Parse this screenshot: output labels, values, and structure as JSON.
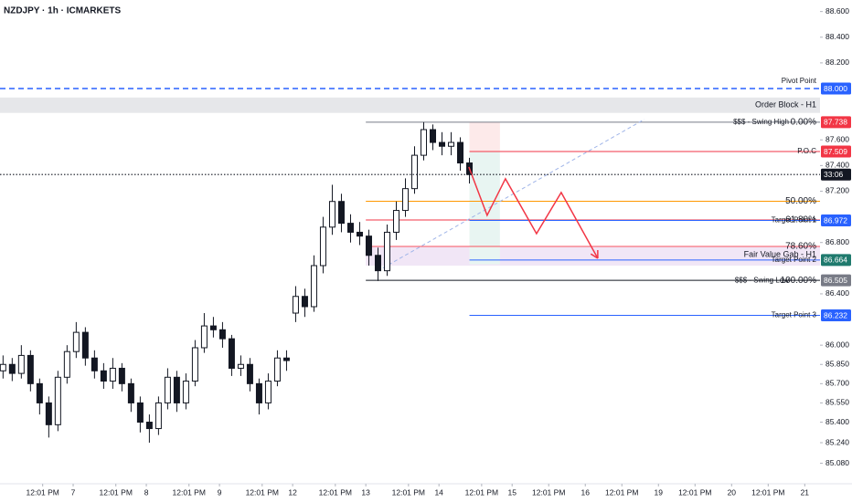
{
  "chart_data": {
    "type": "candlestick",
    "title": "NZDJPY · 1h · ICMARKETS",
    "x": [
      1,
      4,
      7,
      10,
      13,
      16,
      19,
      22,
      25,
      28,
      31,
      34,
      37,
      40,
      43,
      46,
      49,
      52,
      55,
      58,
      61,
      64,
      67,
      70,
      73,
      76,
      79,
      82,
      85,
      88,
      91,
      94,
      97,
      100,
      103,
      106,
      109,
      112,
      115,
      118,
      121,
      124,
      127,
      130,
      133,
      136,
      139,
      142,
      145,
      148,
      151,
      154
    ],
    "open": [
      85.8,
      85.85,
      85.78,
      85.92,
      85.7,
      85.55,
      85.38,
      85.75,
      85.95,
      86.1,
      85.9,
      85.8,
      85.72,
      85.82,
      85.7,
      85.55,
      85.4,
      85.35,
      85.55,
      85.75,
      85.55,
      85.72,
      85.98,
      86.15,
      86.12,
      86.05,
      85.82,
      85.85,
      85.7,
      85.55,
      85.72,
      85.9,
      86.25,
      86.38,
      86.3,
      86.62,
      86.92,
      87.12,
      86.95,
      86.88,
      86.85,
      86.7,
      86.58,
      86.88,
      87.05,
      87.22,
      87.48,
      87.68,
      87.58,
      87.55,
      87.58,
      87.42
    ],
    "high": [
      85.92,
      85.9,
      86.0,
      85.96,
      85.74,
      85.6,
      85.8,
      86.0,
      86.18,
      86.14,
      85.96,
      85.86,
      85.9,
      85.86,
      85.74,
      85.6,
      85.46,
      85.6,
      85.82,
      85.8,
      85.78,
      86.04,
      86.25,
      86.22,
      86.18,
      86.08,
      85.92,
      85.9,
      85.74,
      85.78,
      85.96,
      85.96,
      86.46,
      86.44,
      86.7,
      87.0,
      87.25,
      87.18,
      87.02,
      86.96,
      86.9,
      86.76,
      86.94,
      87.12,
      87.3,
      87.55,
      87.738,
      87.72,
      87.66,
      87.66,
      87.62,
      87.46
    ],
    "low": [
      85.74,
      85.72,
      85.74,
      85.64,
      85.46,
      85.28,
      85.33,
      85.7,
      85.9,
      85.84,
      85.74,
      85.66,
      85.66,
      85.64,
      85.48,
      85.32,
      85.24,
      85.3,
      85.5,
      85.48,
      85.5,
      85.68,
      85.94,
      86.06,
      85.98,
      85.76,
      85.76,
      85.64,
      85.46,
      85.5,
      85.68,
      85.8,
      86.18,
      86.22,
      86.26,
      86.56,
      86.86,
      86.88,
      86.8,
      86.78,
      86.62,
      86.5,
      86.54,
      86.82,
      87.0,
      87.18,
      87.44,
      87.52,
      87.48,
      87.48,
      87.36,
      87.26
    ],
    "close": [
      85.85,
      85.78,
      85.92,
      85.7,
      85.55,
      85.38,
      85.75,
      85.95,
      86.1,
      85.9,
      85.8,
      85.72,
      85.82,
      85.7,
      85.55,
      85.4,
      85.35,
      85.55,
      85.75,
      85.55,
      85.72,
      85.98,
      86.15,
      86.12,
      86.05,
      85.82,
      85.85,
      85.7,
      85.55,
      85.72,
      85.9,
      85.88,
      86.38,
      86.3,
      86.62,
      86.92,
      87.12,
      86.95,
      86.88,
      86.85,
      86.7,
      86.58,
      86.88,
      87.05,
      87.22,
      87.48,
      87.68,
      87.58,
      87.55,
      87.58,
      87.42,
      87.33
    ],
    "up_color": "#ffffff",
    "down_color": "#131722",
    "countdown": "33:06",
    "xlim": [
      0,
      269
    ],
    "ylim": [
      84.92,
      88.69
    ],
    "grid": false,
    "xticks": [
      {
        "value": 14,
        "label": "12:01 PM"
      },
      {
        "value": 24,
        "label": "7"
      },
      {
        "value": 38,
        "label": "12:01 PM"
      },
      {
        "value": 48,
        "label": "8"
      },
      {
        "value": 62,
        "label": "12:01 PM"
      },
      {
        "value": 72,
        "label": "9"
      },
      {
        "value": 86,
        "label": "12:01 PM"
      },
      {
        "value": 96,
        "label": "12"
      },
      {
        "value": 110,
        "label": "12:01 PM"
      },
      {
        "value": 120,
        "label": "13"
      },
      {
        "value": 134,
        "label": "12:01 PM"
      },
      {
        "value": 144,
        "label": "14"
      },
      {
        "value": 158,
        "label": "12:01 PM"
      },
      {
        "value": 168,
        "label": "15"
      },
      {
        "value": 180,
        "label": "12:01 PM"
      },
      {
        "value": 192,
        "label": "16"
      },
      {
        "value": 204,
        "label": "12:01 PM"
      },
      {
        "value": 216,
        "label": "19"
      },
      {
        "value": 228,
        "label": "12:01 PM"
      },
      {
        "value": 240,
        "label": "20"
      },
      {
        "value": 252,
        "label": "12:01 PM"
      },
      {
        "value": 264,
        "label": "21"
      }
    ],
    "yticks": [
      {
        "value": 88.6,
        "label": "88.600"
      },
      {
        "value": 88.4,
        "label": "88.400"
      },
      {
        "value": 88.2,
        "label": "88.200"
      },
      {
        "value": 87.6,
        "label": "87.600"
      },
      {
        "value": 87.4,
        "label": "87.400"
      },
      {
        "value": 87.2,
        "label": "87.200"
      },
      {
        "value": 86.8,
        "label": "86.800"
      },
      {
        "value": 86.4,
        "label": "86.400"
      },
      {
        "value": 86.0,
        "label": "86.000"
      },
      {
        "value": 85.85,
        "label": "85.850"
      },
      {
        "value": 85.7,
        "label": "85.700"
      },
      {
        "value": 85.55,
        "label": "85.550"
      },
      {
        "value": 85.4,
        "label": "85.400"
      },
      {
        "value": 85.24,
        "label": "85.240"
      },
      {
        "value": 85.08,
        "label": "85.080"
      }
    ],
    "order_block": {
      "label": "Order Block - H1",
      "top": 87.93,
      "bottom": 87.81,
      "color": "#e6e7ea"
    },
    "fair_value_gap": {
      "label": "Fair Value Gab - H1",
      "top": 86.77,
      "bottom": 86.62,
      "from": 120,
      "color": "#f1e6f6"
    },
    "position": {
      "from": 154,
      "to": 164,
      "stop": 87.738,
      "entry": 87.509,
      "target": 86.63,
      "stop_color": "#fdeaea",
      "target_color": "#e8f5f2"
    },
    "fibonacci": {
      "from": 120,
      "levels": [
        {
          "label": "0.00%",
          "name": "$$$ - Swing High",
          "value": 87.738,
          "value_label": "87.738",
          "color": "#787b86",
          "box_color": "#f23645"
        },
        {
          "label": "50.00%",
          "value": 87.1215,
          "color": "#ff9800"
        },
        {
          "label": "61.80%",
          "value": 86.976,
          "color": "#f23645"
        },
        {
          "label": "78.60%",
          "value": 86.769,
          "color": "#f7525f"
        },
        {
          "label": "100.00%",
          "name": "$$$ - Swing Low",
          "value": 86.505,
          "value_label": "86.505",
          "color": "#131722",
          "box_color": "#787b86"
        }
      ]
    },
    "levels": [
      {
        "name": "Pivot Point",
        "value": 88.0,
        "value_label": "88.000",
        "color": "#2962ff",
        "from": 0,
        "dashed": true,
        "box_color": "#2962ff"
      },
      {
        "name": "P.O.C",
        "value": 87.509,
        "value_label": "87.509",
        "color": "#f23645",
        "from": 154,
        "box_color": "#f23645"
      },
      {
        "name": "Target Point 1",
        "value": 86.972,
        "value_label": "86.972",
        "color": "#2962ff",
        "from": 154,
        "box_color": "#2962ff"
      },
      {
        "name": "Target Point 2",
        "value": 86.664,
        "value_label": "86.664",
        "color": "#2962ff",
        "from": 154,
        "box_color": "#1f7a6d"
      },
      {
        "name": "Target Point 3",
        "value": 86.232,
        "value_label": "86.232",
        "color": "#2962ff",
        "from": 154,
        "box_color": "#2962ff"
      }
    ],
    "trend_line": {
      "x": [
        123.8,
        211.4
      ],
      "y": [
        86.577,
        87.76
      ],
      "color": "#9fb4e8"
    },
    "projection": {
      "x": [
        153.8,
        159.8,
        165.8,
        176,
        184.1,
        196.1
      ],
      "y": [
        87.389,
        87.012,
        87.297,
        86.869,
        87.19,
        86.677
      ],
      "color": "#f23645"
    }
  }
}
